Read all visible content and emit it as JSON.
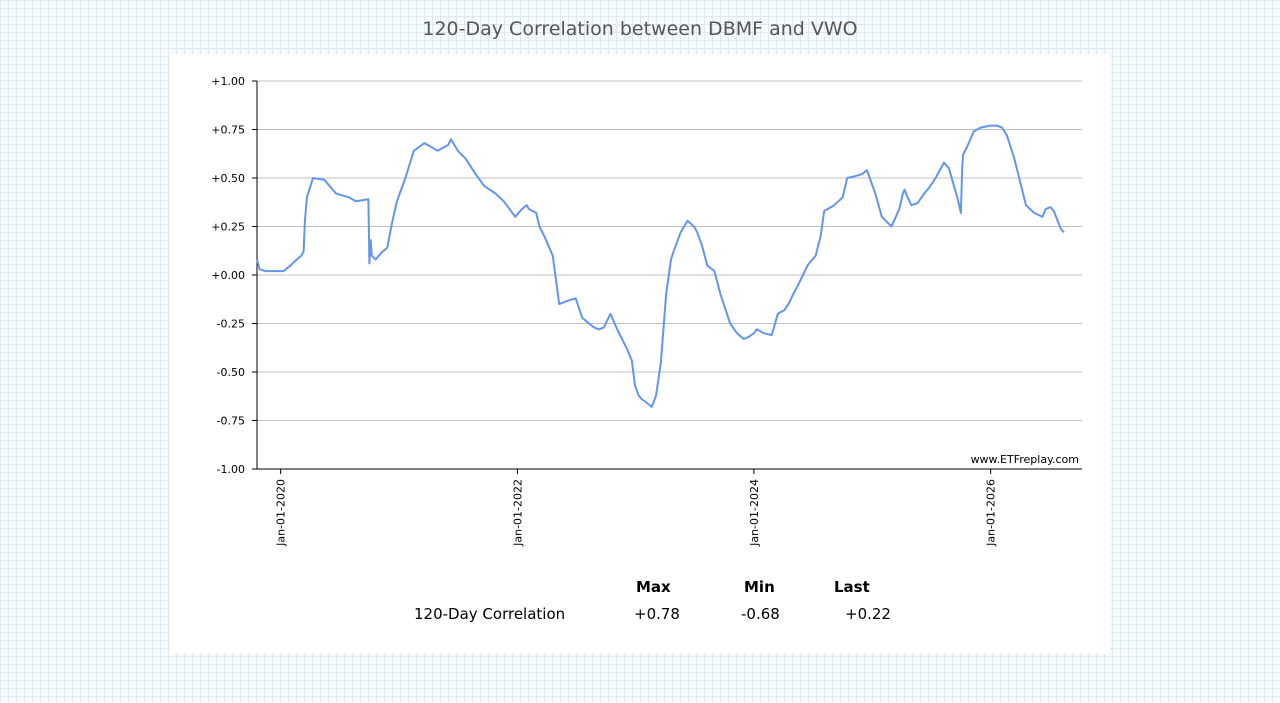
{
  "title": "120-Day Correlation between DBMF and VWO",
  "watermark": "www.ETFreplay.com",
  "colors": {
    "line": "#6495ed",
    "grid": "#c0c0c0",
    "axis": "#000000"
  },
  "stats": {
    "headers": [
      "Max",
      "Min",
      "Last"
    ],
    "row_label": "120-Day Correlation",
    "values": [
      "+0.78",
      "-0.68",
      "+0.22"
    ]
  },
  "chart_data": {
    "type": "line",
    "title": "120-Day Correlation between DBMF and VWO",
    "xlabel": "",
    "ylabel": "",
    "grid": true,
    "ylim": [
      -1.0,
      1.0
    ],
    "xlim": [
      "2019-10-20",
      "2026-10-10"
    ],
    "y_ticks": [
      1.0,
      0.75,
      0.5,
      0.25,
      0.0,
      -0.25,
      -0.5,
      -0.75,
      -1.0
    ],
    "y_tick_labels": [
      "+1.00",
      "+0.75",
      "+0.50",
      "+0.25",
      "+0.00",
      "-0.25",
      "-0.50",
      "-0.75",
      "-1.00"
    ],
    "x_ticks": [
      "2020-01-01",
      "2022-01-01",
      "2024-01-01",
      "2026-01-01"
    ],
    "x_tick_labels": [
      "Jan-01-2020",
      "Jan-01-2022",
      "Jan-01-2024",
      "Jan-01-2026"
    ],
    "series": [
      {
        "x": [
          "2019-10-20",
          "2019-10-28",
          "2019-11-15",
          "2019-12-10",
          "2020-01-10",
          "2020-02-01",
          "2020-02-20",
          "2020-03-05",
          "2020-03-12",
          "2020-03-16",
          "2020-03-22",
          "2020-04-10",
          "2020-05-15",
          "2020-06-20",
          "2020-07-30",
          "2020-08-20",
          "2020-09-28",
          "2020-10-01",
          "2020-10-05",
          "2020-10-08",
          "2020-10-20",
          "2020-11-10",
          "2020-11-25",
          "2020-12-10",
          "2020-12-25",
          "2021-01-20",
          "2021-02-15",
          "2021-03-20",
          "2021-04-30",
          "2021-06-01",
          "2021-06-10",
          "2021-07-01",
          "2021-07-25",
          "2021-08-25",
          "2021-09-20",
          "2021-10-25",
          "2021-11-20",
          "2021-12-25",
          "2022-01-15",
          "2022-01-30",
          "2022-02-05",
          "2022-02-28",
          "2022-03-10",
          "2022-03-25",
          "2022-04-20",
          "2022-05-10",
          "2022-06-10",
          "2022-06-30",
          "2022-07-20",
          "2022-08-10",
          "2022-08-25",
          "2022-09-10",
          "2022-09-25",
          "2022-10-15",
          "2022-11-05",
          "2022-12-05",
          "2022-12-20",
          "2022-12-30",
          "2023-01-10",
          "2023-01-20",
          "2023-02-05",
          "2023-02-20",
          "2023-03-05",
          "2023-03-20",
          "2023-04-05",
          "2023-04-20",
          "2023-04-28",
          "2023-05-20",
          "2023-06-10",
          "2023-06-30",
          "2023-07-10",
          "2023-07-25",
          "2023-08-10",
          "2023-09-01",
          "2023-09-20",
          "2023-10-20",
          "2023-11-10",
          "2023-12-01",
          "2023-12-15",
          "2024-01-01",
          "2024-01-10",
          "2024-02-01",
          "2024-02-25",
          "2024-03-15",
          "2024-04-05",
          "2024-04-20",
          "2024-05-01",
          "2024-05-20",
          "2024-06-15",
          "2024-07-10",
          "2024-07-25",
          "2024-08-05",
          "2024-09-05",
          "2024-10-01",
          "2024-10-15",
          "2024-11-10",
          "2024-11-30",
          "2024-12-15",
          "2025-01-10",
          "2025-01-30",
          "2025-03-01",
          "2025-03-25",
          "2025-04-05",
          "2025-04-10",
          "2025-04-20",
          "2025-05-01",
          "2025-05-20",
          "2025-06-10",
          "2025-06-25",
          "2025-07-15",
          "2025-08-10",
          "2025-08-25",
          "2025-09-20",
          "2025-10-01",
          "2025-10-05",
          "2025-10-08",
          "2025-10-20",
          "2025-11-10",
          "2025-12-01",
          "2025-12-31",
          "2026-01-20",
          "2026-02-05",
          "2026-02-20",
          "2026-03-15",
          "2026-04-20",
          "2026-05-15",
          "2026-06-10",
          "2026-06-20",
          "2026-07-05",
          "2026-07-15",
          "2026-08-05",
          "2026-08-15"
        ],
        "y": [
          0.08,
          0.03,
          0.02,
          0.02,
          0.02,
          0.05,
          0.08,
          0.1,
          0.12,
          0.28,
          0.4,
          0.5,
          0.49,
          0.42,
          0.4,
          0.38,
          0.39,
          0.06,
          0.18,
          0.1,
          0.08,
          0.12,
          0.14,
          0.27,
          0.38,
          0.5,
          0.64,
          0.68,
          0.64,
          0.67,
          0.7,
          0.64,
          0.6,
          0.52,
          0.46,
          0.42,
          0.38,
          0.3,
          0.34,
          0.36,
          0.34,
          0.32,
          0.25,
          0.2,
          0.1,
          -0.15,
          -0.13,
          -0.12,
          -0.22,
          -0.25,
          -0.27,
          -0.28,
          -0.27,
          -0.2,
          -0.28,
          -0.38,
          -0.44,
          -0.57,
          -0.62,
          -0.64,
          -0.66,
          -0.68,
          -0.62,
          -0.45,
          -0.1,
          0.08,
          0.12,
          0.22,
          0.28,
          0.25,
          0.22,
          0.15,
          0.05,
          0.02,
          -0.1,
          -0.25,
          -0.3,
          -0.33,
          -0.32,
          -0.3,
          -0.28,
          -0.3,
          -0.31,
          -0.2,
          -0.18,
          -0.14,
          -0.1,
          -0.04,
          0.05,
          0.1,
          0.2,
          0.33,
          0.36,
          0.4,
          0.5,
          0.51,
          0.52,
          0.54,
          0.42,
          0.3,
          0.25,
          0.34,
          0.42,
          0.44,
          0.4,
          0.36,
          0.37,
          0.42,
          0.45,
          0.5,
          0.58,
          0.55,
          0.4,
          0.32,
          0.55,
          0.62,
          0.66,
          0.74,
          0.76,
          0.77,
          0.77,
          0.76,
          0.72,
          0.6,
          0.36,
          0.32,
          0.3,
          0.34,
          0.35,
          0.33,
          0.24,
          0.22
        ]
      }
    ]
  }
}
